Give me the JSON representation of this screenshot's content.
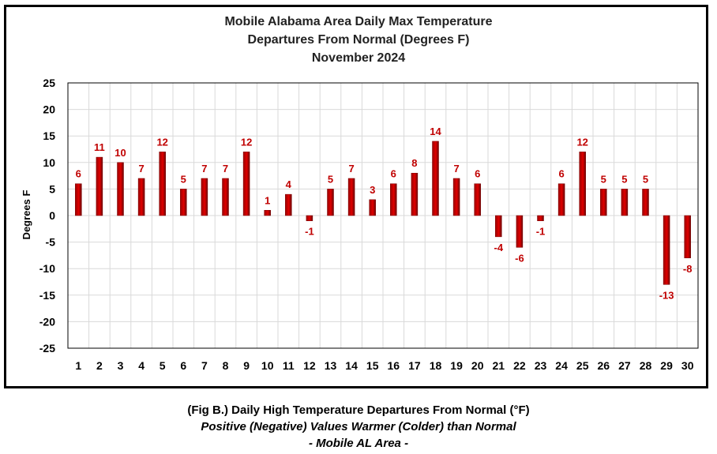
{
  "chart_data": {
    "type": "bar",
    "title_lines": [
      "Mobile Alabama Area Daily Max Temperature",
      "Departures From Normal (Degrees F)",
      "November 2024"
    ],
    "xlabel": "",
    "ylabel": "Degrees F",
    "ylim": [
      -25,
      25
    ],
    "yticks": [
      25,
      20,
      15,
      10,
      5,
      0,
      -5,
      -10,
      -15,
      -20,
      -25
    ],
    "grid": true,
    "legend": "none",
    "categories": [
      "1",
      "2",
      "3",
      "4",
      "5",
      "6",
      "7",
      "8",
      "9",
      "10",
      "11",
      "12",
      "13",
      "14",
      "15",
      "16",
      "17",
      "18",
      "19",
      "20",
      "21",
      "22",
      "23",
      "24",
      "25",
      "26",
      "27",
      "28",
      "29",
      "30"
    ],
    "values": [
      6,
      11,
      10,
      7,
      12,
      5,
      7,
      7,
      12,
      1,
      4,
      -1,
      5,
      7,
      3,
      6,
      8,
      14,
      7,
      6,
      -4,
      -6,
      -1,
      6,
      12,
      5,
      5,
      5,
      -13,
      -8
    ],
    "colors": {
      "bar": "#cc0000",
      "bar_dark": "#7a0000",
      "label": "#c00000",
      "grid": "#d9d9d9"
    }
  },
  "captions": {
    "line1": "(Fig B.) Daily High Temperature Departures From Normal (°F)",
    "line2": "Positive (Negative) Values Warmer (Colder) than Normal",
    "line3": "- Mobile AL Area -"
  }
}
